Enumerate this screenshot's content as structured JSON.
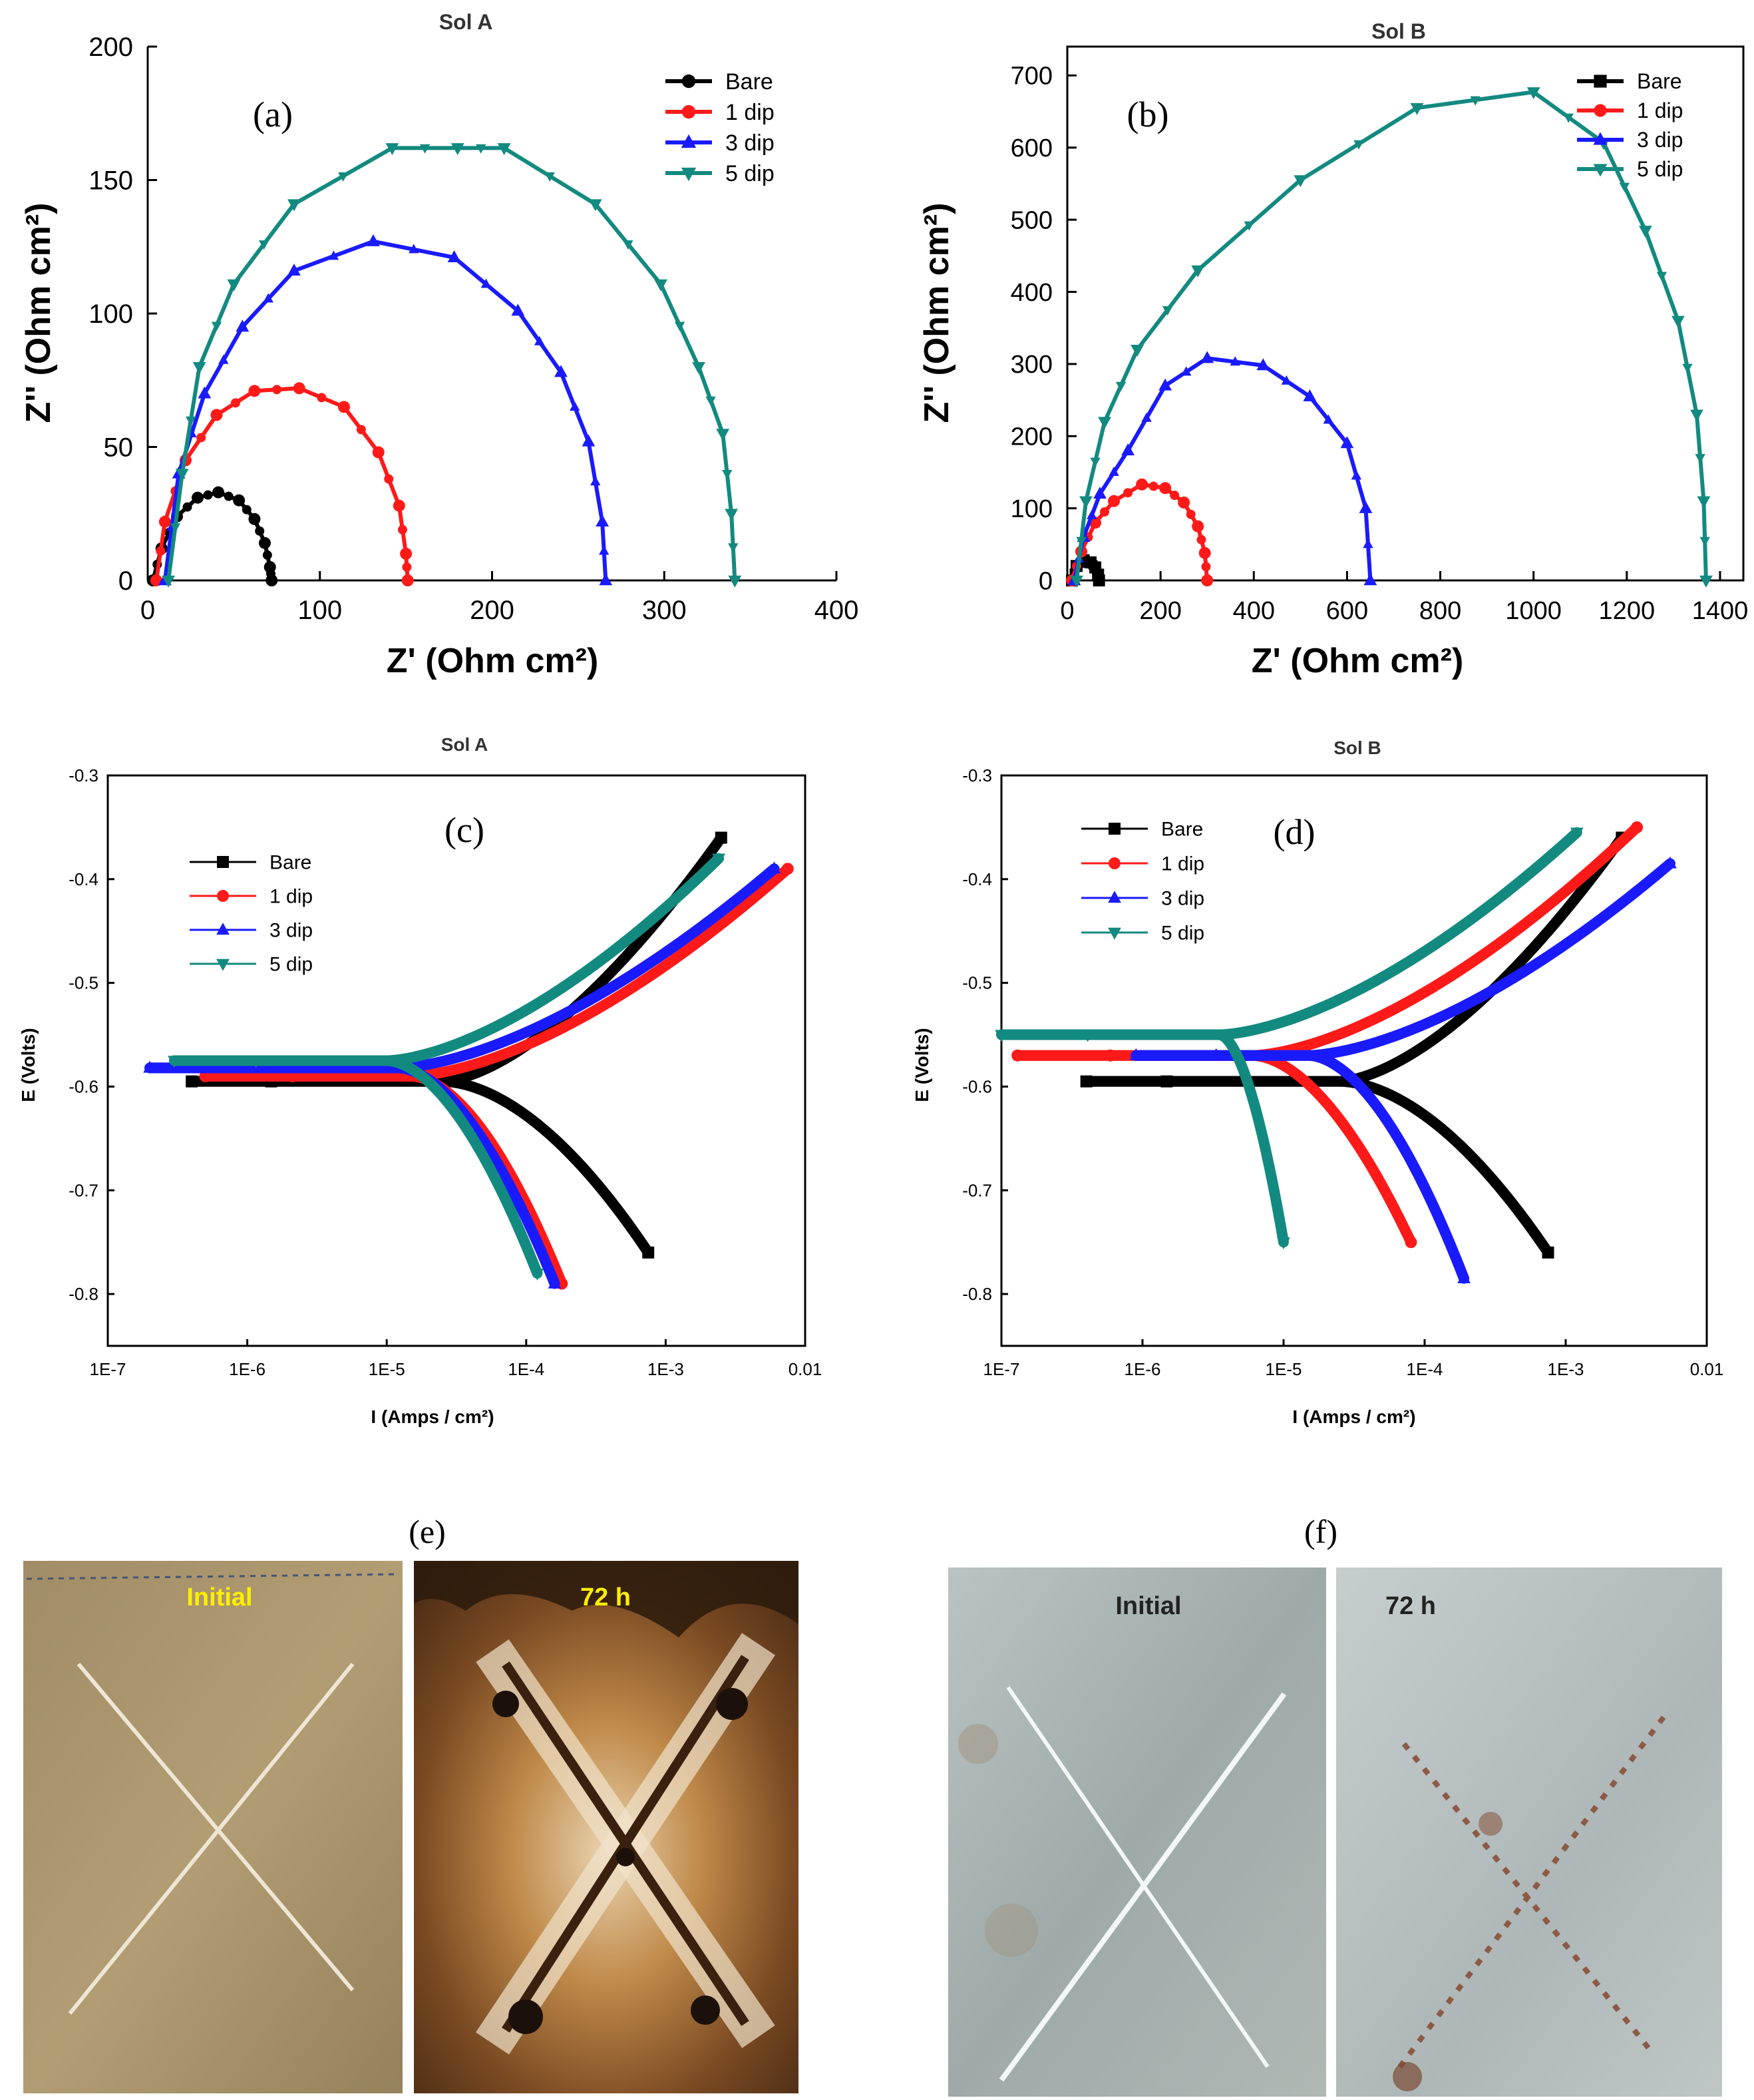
{
  "colors": {
    "bare": "#000000",
    "dip1": "#ff1a1a",
    "dip3": "#1a1aff",
    "dip5": "#138a80",
    "axis": "#000000"
  },
  "chart_data": [
    {
      "id": "a",
      "type": "line",
      "panel_label": "(a)",
      "title": "Sol A",
      "xlabel": "Z' (Ohm cm²)",
      "ylabel": "Z'' (Ohm cm²)",
      "xlim": [
        0,
        400
      ],
      "ylim": [
        0,
        200
      ],
      "xticks": [
        0,
        100,
        200,
        300,
        400
      ],
      "yticks": [
        0,
        50,
        100,
        150,
        200
      ],
      "xtick_labels": [
        "0",
        "100",
        "200",
        "300",
        "400"
      ],
      "ytick_labels": [
        "0",
        "50",
        "100",
        "150",
        "200"
      ],
      "legend": [
        "Bare",
        "1 dip",
        "3 dip",
        "5 dip"
      ],
      "series": [
        {
          "name": "Bare",
          "color": "bare",
          "marker": "circle",
          "x": [
            3,
            8,
            17,
            29,
            41,
            53,
            62,
            68,
            71,
            72
          ],
          "y": [
            0,
            12,
            24,
            31,
            33,
            30,
            23,
            14,
            5,
            0
          ]
        },
        {
          "name": "1 dip",
          "color": "dip1",
          "marker": "circle",
          "x": [
            5,
            10,
            22,
            40,
            62,
            88,
            114,
            134,
            146,
            150,
            151
          ],
          "y": [
            0,
            22,
            45,
            62,
            71,
            72,
            65,
            48,
            28,
            10,
            0
          ]
        },
        {
          "name": "3 dip",
          "color": "dip3",
          "marker": "triangle-up",
          "x": [
            10,
            18,
            33,
            55,
            85,
            131,
            178,
            215,
            240,
            256,
            264,
            266
          ],
          "y": [
            0,
            40,
            70,
            95,
            116,
            127,
            121,
            101,
            78,
            52,
            22,
            0
          ]
        },
        {
          "name": "5 dip",
          "color": "dip5",
          "marker": "triangle-down",
          "x": [
            12,
            20,
            30,
            50,
            85,
            142,
            180,
            207,
            260,
            298,
            320,
            334,
            339,
            341
          ],
          "y": [
            0,
            40,
            80,
            111,
            141,
            162,
            162,
            162,
            141,
            111,
            80,
            55,
            25,
            0
          ]
        }
      ]
    },
    {
      "id": "b",
      "type": "line",
      "panel_label": "(b)",
      "title": "Sol B",
      "xlabel": "Z' (Ohm cm²)",
      "ylabel": "Z'' (Ohm cm²)",
      "xlim": [
        0,
        1450
      ],
      "ylim": [
        0,
        740
      ],
      "xticks": [
        0,
        200,
        400,
        600,
        800,
        1000,
        1200,
        1400
      ],
      "yticks": [
        0,
        100,
        200,
        300,
        400,
        500,
        600,
        700
      ],
      "xtick_labels": [
        "0",
        "200",
        "400",
        "600",
        "800",
        "1000",
        "1200",
        "1400"
      ],
      "ytick_labels": [
        "0",
        "100",
        "200",
        "300",
        "400",
        "500",
        "600",
        "700"
      ],
      "legend": [
        "Bare",
        "1 dip",
        "3 dip",
        "5 dip"
      ],
      "series": [
        {
          "name": "Bare",
          "color": "bare",
          "marker": "square",
          "x": [
            10,
            20,
            35,
            50,
            60,
            66,
            68
          ],
          "y": [
            0,
            20,
            28,
            25,
            18,
            8,
            0
          ]
        },
        {
          "name": "1 dip",
          "color": "dip1",
          "marker": "circle",
          "x": [
            10,
            30,
            60,
            100,
            160,
            210,
            250,
            280,
            295,
            300
          ],
          "y": [
            0,
            40,
            80,
            110,
            133,
            128,
            108,
            75,
            38,
            0
          ]
        },
        {
          "name": "3 dip",
          "color": "dip3",
          "marker": "triangle-up",
          "x": [
            15,
            35,
            70,
            130,
            210,
            300,
            420,
            520,
            600,
            640,
            650
          ],
          "y": [
            0,
            60,
            120,
            180,
            270,
            308,
            298,
            255,
            190,
            100,
            0
          ]
        },
        {
          "name": "5 dip",
          "color": "dip5",
          "marker": "triangle-down",
          "x": [
            20,
            40,
            80,
            150,
            280,
            500,
            750,
            1000,
            1150,
            1240,
            1310,
            1350,
            1365,
            1370
          ],
          "y": [
            0,
            110,
            220,
            320,
            430,
            555,
            655,
            677,
            607,
            485,
            360,
            230,
            110,
            0
          ]
        }
      ]
    },
    {
      "id": "c",
      "type": "scatter",
      "panel_label": "(c)",
      "title": "Sol A",
      "xlabel": "I (Amps / cm²)",
      "ylabel": "E (Volts)",
      "xscale": "log",
      "xlim": [
        1e-07,
        0.01
      ],
      "ylim": [
        -0.85,
        -0.3
      ],
      "xticks": [
        1e-07,
        1e-06,
        1e-05,
        0.0001,
        0.001,
        0.01
      ],
      "yticks": [
        -0.3,
        -0.4,
        -0.5,
        -0.6,
        -0.7,
        -0.8
      ],
      "xtick_labels": [
        "1E-7",
        "1E-6",
        "1E-5",
        "1E-4",
        "1E-3",
        "0.01"
      ],
      "ytick_labels": [
        "-0.3",
        "-0.4",
        "-0.5",
        "-0.6",
        "-0.7",
        "-0.8"
      ],
      "legend": [
        "Bare",
        "1 dip",
        "3 dip",
        "5 dip"
      ],
      "series": [
        {
          "name": "Bare",
          "color": "bare",
          "marker": "square",
          "icorr": 2.5e-05,
          "ecorr": -0.595,
          "imin": 4e-07,
          "emax": -0.36,
          "imax": 0.0025,
          "emin": -0.76,
          "iend": 0.00075
        },
        {
          "name": "1 dip",
          "color": "dip1",
          "marker": "circle",
          "icorr": 1.5e-05,
          "ecorr": -0.59,
          "imin": 5e-07,
          "emax": -0.39,
          "imax": 0.0075,
          "emin": -0.79,
          "iend": 0.00018
        },
        {
          "name": "3 dip",
          "color": "dip3",
          "marker": "triangle-up",
          "icorr": 1.2e-05,
          "ecorr": -0.582,
          "imin": 2e-07,
          "emax": -0.39,
          "imax": 0.006,
          "emin": -0.79,
          "iend": 0.00016
        },
        {
          "name": "5 dip",
          "color": "dip5",
          "marker": "triangle-down",
          "icorr": 1e-05,
          "ecorr": -0.575,
          "imin": 3e-07,
          "emax": -0.38,
          "imax": 0.0024,
          "emin": -0.78,
          "iend": 0.00012
        }
      ]
    },
    {
      "id": "d",
      "type": "scatter",
      "panel_label": "(d)",
      "title": "Sol B",
      "xlabel": "I (Amps / cm²)",
      "ylabel": "E (Volts)",
      "xscale": "log",
      "xlim": [
        1e-07,
        0.01
      ],
      "ylim": [
        -0.85,
        -0.3
      ],
      "xticks": [
        1e-07,
        1e-06,
        1e-05,
        0.0001,
        0.001,
        0.01
      ],
      "yticks": [
        -0.3,
        -0.4,
        -0.5,
        -0.6,
        -0.7,
        -0.8
      ],
      "xtick_labels": [
        "1E-7",
        "1E-6",
        "1E-5",
        "1E-4",
        "1E-3",
        "0.01"
      ],
      "ytick_labels": [
        "-0.3",
        "-0.4",
        "-0.5",
        "-0.6",
        "-0.7",
        "-0.8"
      ],
      "legend": [
        "Bare",
        "1 dip",
        "3 dip",
        "5 dip"
      ],
      "series": [
        {
          "name": "Bare",
          "color": "bare",
          "marker": "square",
          "icorr": 2.5e-05,
          "ecorr": -0.595,
          "imin": 4e-07,
          "emax": -0.36,
          "imax": 0.0025,
          "emin": -0.76,
          "iend": 0.00075
        },
        {
          "name": "1 dip",
          "color": "dip1",
          "marker": "circle",
          "icorr": 6e-06,
          "ecorr": -0.57,
          "imin": 1.3e-07,
          "emax": -0.35,
          "imax": 0.0032,
          "emin": -0.75,
          "iend": 8e-05
        },
        {
          "name": "3 dip",
          "color": "dip3",
          "marker": "triangle-up",
          "icorr": 1.5e-05,
          "ecorr": -0.57,
          "imin": 9e-07,
          "emax": -0.385,
          "imax": 0.0055,
          "emin": -0.785,
          "iend": 0.00019
        },
        {
          "name": "5 dip",
          "color": "dip5",
          "marker": "triangle-down",
          "icorr": 3.5e-06,
          "ecorr": -0.55,
          "imin": 1e-07,
          "emax": -0.355,
          "imax": 0.0012,
          "emin": -0.75,
          "iend": 1e-05
        }
      ]
    }
  ],
  "photos": {
    "e": {
      "label": "(e)",
      "left": {
        "caption": "Initial"
      },
      "right": {
        "caption": "72 h"
      }
    },
    "f": {
      "label": "(f)",
      "left": {
        "caption": "Initial"
      },
      "right": {
        "caption": "72 h"
      }
    }
  }
}
